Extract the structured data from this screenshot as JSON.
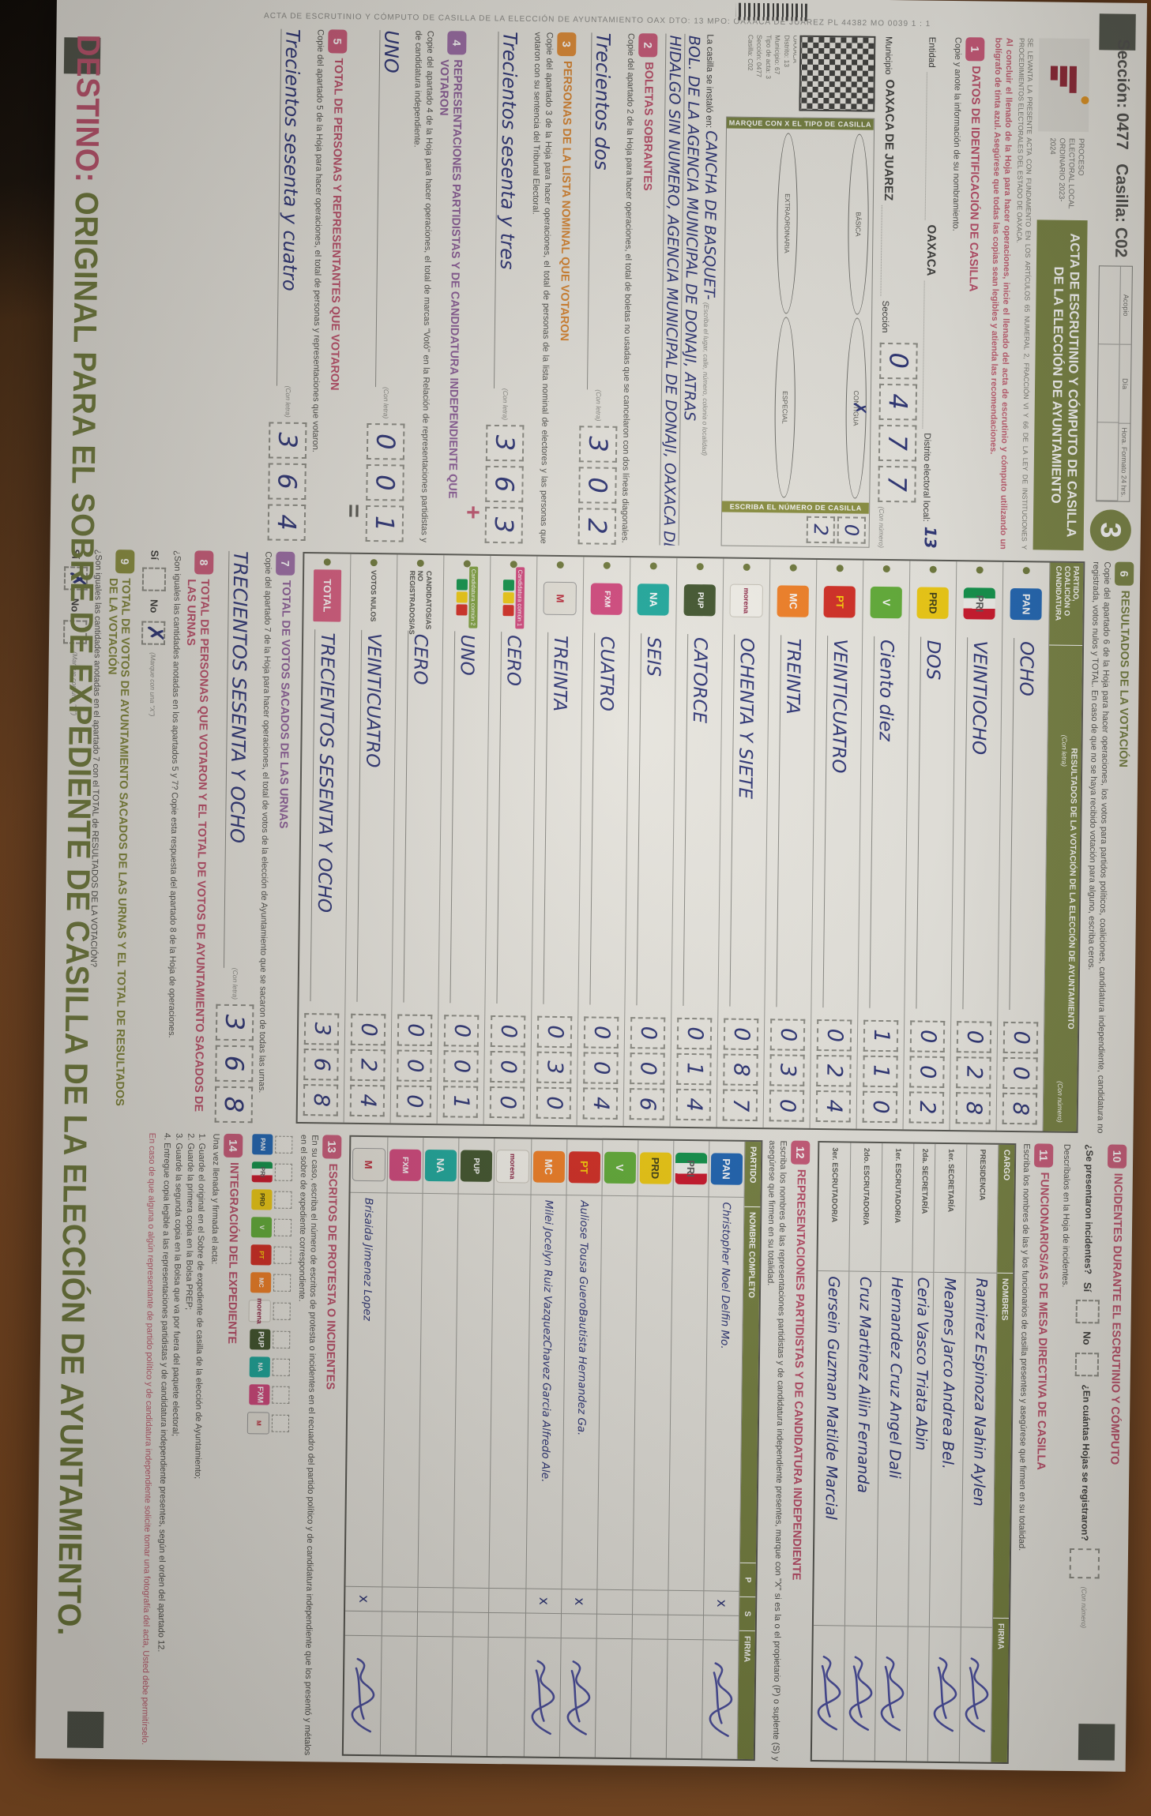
{
  "photo": {
    "table_color": "#7a4a27",
    "shadow_color": "#17110c",
    "paper_color": "#e9e7e0",
    "accent_green": "#76813f",
    "accent_pink": "#cb5878",
    "ink_color": "#283074"
  },
  "doc": {
    "edge": {
      "side_text": "ACTA DE ESCRUTINIO Y CÓMPUTO DE CASILLA DE LA ELECCIÓN DE AYUNTAMIENTO      OAX      DTO: 13      MPO: OAXACA DE JUÁREZ      PL 44382      MO 0039      1 : 1"
    },
    "header": {
      "seccion_label": "Sección:",
      "seccion": "0477",
      "casilla_label": "Casilla:",
      "casilla": "C02",
      "acopio": {
        "title": "Acopio",
        "dia": "Día",
        "hora": "Hora. Formato 24 hrs."
      },
      "copy_number": "3",
      "proceso": "PROCESO ELECTORAL LOCAL ORDINARIO 2023-2024",
      "title": "ACTA DE ESCRUTINIO Y CÓMPUTO DE CASILLA DE LA ELECCIÓN DE AYUNTAMIENTO",
      "legal": "SE LEVANTA LA PRESENTE ACTA CON FUNDAMENTO EN LOS ARTÍCULOS 65 NUMERAL 2, FRACCIÓN VI Y 66 DE LA LEY DE INSTITUCIONES Y PROCEDIMIENTOS ELECTORALES DEL ESTADO DE OAXACA.",
      "warning": "Al concluir el llenado de la Hoja para hacer operaciones, inicie el llenado del acta de escrutinio y cómputo utilizando un bolígrafo de tinta azul. Asegúrese que todas las copias sean legibles y atienda las recomendaciones."
    },
    "labels": {
      "con_letra": "(Con letra)",
      "con_numero": "(Con número)",
      "marque_x": "(Marque con una \"X\")",
      "si": "Sí",
      "no": "No"
    },
    "s1": {
      "num": "1",
      "title": "DATOS DE IDENTIFICACIÓN DE CASILLA",
      "body": "Copie y anote la información de su nombramiento.",
      "entidad_label": "Entidad",
      "entidad": "OAXACA",
      "distrito_label": "Distrito electoral local:",
      "distrito": "13",
      "municipio_label": "Municipio",
      "municipio": "OAXACA DE JUAREZ",
      "seccion_label": "Sección",
      "seccion_digits": "0477",
      "qr_lines": [
        "OAXACA",
        "Distrito: 13",
        "Municipio: 67",
        "Tipo de acta: 3",
        "Sección: 0477",
        "Casilla: C02"
      ],
      "marque_bar": "MARQUE CON X EL TIPO DE CASILLA",
      "tipos": [
        {
          "label": "BÁSICA",
          "marked": false
        },
        {
          "label": "CONTIGUA",
          "marked": true
        },
        {
          "label": "EXTRAORDINARIA",
          "marked": false
        },
        {
          "label": "ESPECIAL",
          "marked": false
        }
      ],
      "numcas_bar": "ESCRIBA EL NÚMERO DE CASILLA",
      "numcas_digits": "02",
      "lugar_label": "La casilla se instaló en:",
      "lugar_hint": "(Escriba el lugar, calle, número, colonia o localidad)",
      "lugar_line1": "CANCHA DE BASQUET-",
      "lugar_line2": "BOL. DE LA AGENCIA MUNICIPAL DE DONAJI, ATRAS",
      "lugar_line3": "HIDALGO SIN NUMERO, AGENCIA MUNICIPAL DE DONAJI, OAXACA DE JUA."
    },
    "s2": {
      "num": "2",
      "title": "BOLETAS SOBRANTES",
      "body": "Copie del apartado 2 de la Hoja para hacer operaciones, el total de boletas no usadas que se cancelaron con dos líneas diagonales.",
      "letra": "Trecientos dos",
      "numero": "302"
    },
    "s3": {
      "num": "3",
      "title": "PERSONAS DE LA LISTA NOMINAL QUE VOTARON",
      "body": "Copie del apartado 3 de la Hoja para hacer operaciones, el total de personas de la lista nominal de electores y las personas que votaron con su sentencia del Tribunal Electoral.",
      "letra": "Trecientos sesenta y tres",
      "numero": "363"
    },
    "s4": {
      "num": "4",
      "title": "REPRESENTACIONES PARTIDISTAS Y DE CANDIDATURA INDEPENDIENTE QUE VOTARON",
      "body": "Copie del apartado 4 de la Hoja para hacer operaciones, el total de marcas \"Votó\" en la Relación de representaciones partidistas y de candidatura independiente.",
      "letra": "UNO",
      "numero": "001",
      "oper": "+"
    },
    "s5": {
      "num": "5",
      "title": "TOTAL DE PERSONAS Y REPRESENTANTES QUE VOTARON",
      "body": "Copie del apartado 5 de la Hoja para hacer operaciones, el total de personas y representaciones que votaron.",
      "letra": "Trecientos sesenta y cuatro",
      "numero": "364",
      "oper": "="
    },
    "s6": {
      "num": "6",
      "title": "RESULTADOS DE LA VOTACIÓN",
      "body": "Copie del apartado 6 de la Hoja para hacer operaciones, los votos para partidos políticos, coaliciones, candidatura independiente, candidatura no registrada, votos nulos y TOTAL. En caso de que no se haya recibido votación para alguno, escriba ceros.",
      "col1": "PARTIDO, COALICIÓN O CANDIDATURA",
      "col2": "RESULTADOS DE LA VOTACIÓN DE LA ELECCIÓN DE AYUNTAMIENTO"
    },
    "results": {
      "rows": [
        {
          "party": "PAN",
          "letra": "OCHO",
          "numero": "008"
        },
        {
          "party": "PRI",
          "letra": "VEINTIOCHO",
          "numero": "028"
        },
        {
          "party": "PRD",
          "letra": "DOS",
          "numero": "002"
        },
        {
          "party": "PVEM",
          "letra": "Ciento diez",
          "numero": "110"
        },
        {
          "party": "PT",
          "letra": "VEINTICUATRO",
          "numero": "024"
        },
        {
          "party": "MC",
          "letra": "TREINTA",
          "numero": "030"
        },
        {
          "party": "MORENA",
          "letra": "OCHENTA Y SIETE",
          "numero": "087"
        },
        {
          "party": "PUP",
          "letra": "CATORCE",
          "numero": "014"
        },
        {
          "party": "NAO",
          "letra": "SEIS",
          "numero": "006"
        },
        {
          "party": "FXM",
          "letra": "CUATRO",
          "numero": "004"
        },
        {
          "party": "LOC",
          "letra": "TREINTA",
          "numero": "030"
        },
        {
          "party": "CC1",
          "label": "Candidatura común 1",
          "letra": "CERO",
          "numero": "000"
        },
        {
          "party": "CC2",
          "label": "Candidatura común 2",
          "letra": "UNO",
          "numero": "001"
        },
        {
          "party": "NOREG",
          "label": "CANDIDATOS/AS NO REGISTRADOS/AS",
          "letra": "CERO",
          "numero": "000"
        },
        {
          "party": "NULOS",
          "label": "VOTOS NULOS",
          "letra": "VEINTICUATRO",
          "numero": "024"
        },
        {
          "party": "TOTAL",
          "label": "TOTAL",
          "letra": "TRECIENTOS SESENTA Y OCHO",
          "numero": "368"
        }
      ]
    },
    "s7": {
      "num": "7",
      "title": "TOTAL DE VOTOS SACADOS DE LAS URNAS",
      "body": "Copie del apartado 7 de la Hoja para hacer operaciones, el total de votos de la elección de Ayuntamiento que se sacaron de todas las urnas.",
      "letra": "TRECIENTOS SESENTA Y OCHO",
      "numero": "368"
    },
    "s8": {
      "num": "8",
      "title": "TOTAL DE PERSONAS QUE VOTARON Y EL TOTAL DE VOTOS DE AYUNTAMIENTO SACADOS DE LAS URNAS",
      "body": "¿Son iguales las cantidades anotadas en los apartados 5 y 7? Copie esta respuesta del apartado 8 de la Hoja de operaciones.",
      "answer": "No"
    },
    "s9": {
      "num": "9",
      "title": "TOTAL DE VOTOS DE AYUNTAMIENTO SACADOS DE LAS URNAS Y EL TOTAL DE RESULTADOS DE LA VOTACIÓN",
      "body": "¿Son iguales las cantidades anotadas en el apartado 7 con el TOTAL de RESULTADOS DE LA VOTACIÓN?",
      "answer": "Sí"
    },
    "s10": {
      "num": "10",
      "title": "INCIDENTES DURANTE EL ESCRUTINIO Y CÓMPUTO",
      "q1": "¿Se presentaron incidentes?",
      "q2": "¿En cuántas Hojas se registraron?",
      "desc": "Descríbalos en la Hoja de incidentes."
    },
    "s11": {
      "num": "11",
      "title": "FUNCIONARIOS/AS DE MESA DIRECTIVA DE CASILLA",
      "body": "Escriba los nombres de las y los funcionarios de casilla presentes y asegúrese que firmen en su totalidad.",
      "cols": {
        "cargo": "CARGO",
        "nombres": "NOMBRES",
        "firma": "FIRMA"
      },
      "rows": [
        {
          "cargo": "PRESIDENCIA",
          "nombre": "Ramirez Espinoza Nahin Aylen",
          "firma": true
        },
        {
          "cargo": "1er. SECRETARÍA",
          "nombre": "Meanes Jarco Andrea Bel.",
          "firma": true
        },
        {
          "cargo": "2da. SECRETARÍA",
          "nombre": "Ceria Vasco Triata Abin",
          "firma": false
        },
        {
          "cargo": "1er. ESCRUTADOR/A",
          "nombre": "Hernandez Cruz Angel Dali",
          "firma": true
        },
        {
          "cargo": "2do. ESCRUTADOR/A",
          "nombre": "Cruz Martinez Ailin Fernanda",
          "firma": true
        },
        {
          "cargo": "3er. ESCRUTADOR/A",
          "nombre": "Gersein Guzman Matilde Marcial",
          "firma": true
        }
      ]
    },
    "s12": {
      "num": "12",
      "title": "REPRESENTACIONES PARTIDISTAS Y DE CANDIDATURA INDEPENDIENTE",
      "body": "Escriba los nombres de las representaciones partidistas y de candidatura independiente presentes, marque con \"X\" si es la o el propietario (P) o suplente (S) y asegúrese que firmen en su totalidad.",
      "cols": {
        "partido": "PARTIDO",
        "nombre": "NOMBRE COMPLETO",
        "p": "P",
        "s": "S",
        "firma": "FIRMA"
      },
      "rows": [
        {
          "party": "PAN",
          "nombre": "Christopher Noel Delfin Mo.",
          "p": true,
          "s": false,
          "firma": true
        },
        {
          "party": "PRI",
          "nombre": "",
          "p": false,
          "s": false,
          "firma": false
        },
        {
          "party": "PRD",
          "nombre": "",
          "p": false,
          "s": false,
          "firma": false
        },
        {
          "party": "PVEM",
          "nombre": "",
          "p": false,
          "s": false,
          "firma": false
        },
        {
          "party": "PT",
          "nombre": "Auliose Tousa Guero / Bautista Hernandez Ga.",
          "p": true,
          "s": false,
          "firma": true
        },
        {
          "party": "MC",
          "nombre": "Milei Jocelyn Ruiz Vazquez / Chavez Garcia Alfredo Ale.",
          "p": true,
          "s": false,
          "firma": true
        },
        {
          "party": "MORENA",
          "nombre": "",
          "p": false,
          "s": false,
          "firma": false
        },
        {
          "party": "PUP",
          "nombre": "",
          "p": false,
          "s": false,
          "firma": false
        },
        {
          "party": "NAO",
          "nombre": "",
          "p": false,
          "s": false,
          "firma": false
        },
        {
          "party": "FXM",
          "nombre": "",
          "p": false,
          "s": false,
          "firma": false
        },
        {
          "party": "LOC",
          "nombre": "Brisaida Jimenez Lopez",
          "p": true,
          "s": false,
          "firma": true
        }
      ]
    },
    "s13": {
      "num": "13",
      "title": "ESCRITOS DE PROTESTA O INCIDENTES",
      "body": "En su caso, escriba el número de escritos de protesta o incidentes en el recuadro del partido político y de candidatura independiente que los presentó y métalos en el sobre de expediente correspondiente.",
      "parties": [
        "PAN",
        "PRI",
        "PRD",
        "PVEM",
        "PT",
        "MC",
        "MORENA",
        "PUP",
        "NAO",
        "FXM",
        "LOC"
      ]
    },
    "s14": {
      "num": "14",
      "title": "INTEGRACIÓN DEL EXPEDIENTE",
      "intro": "Una vez llenada y firmada el acta:",
      "steps": [
        "1. Guarde el original en el Sobre de expediente de casilla de la elección de Ayuntamiento;",
        "2. Guarde la primera copia en la Bolsa PREP;",
        "3. Guarde la segunda copia en la Bolsa que va por fuera del paquete electoral;",
        "4. Entregue copia legible a las representaciones partidistas y de candidatura independiente presentes, según el orden del apartado 12."
      ],
      "note": "En caso de que alguna o algún representante de partido político y de candidatura independiente solicite tomar una fotografía del acta, Usted debe permitírselo."
    },
    "destino": {
      "head": "DESTINO:",
      "rest": " ORIGINAL PARA EL SOBRE DE EXPEDIENTE DE CASILLA DE LA ELECCIÓN DE AYUNTAMIENTO."
    }
  }
}
